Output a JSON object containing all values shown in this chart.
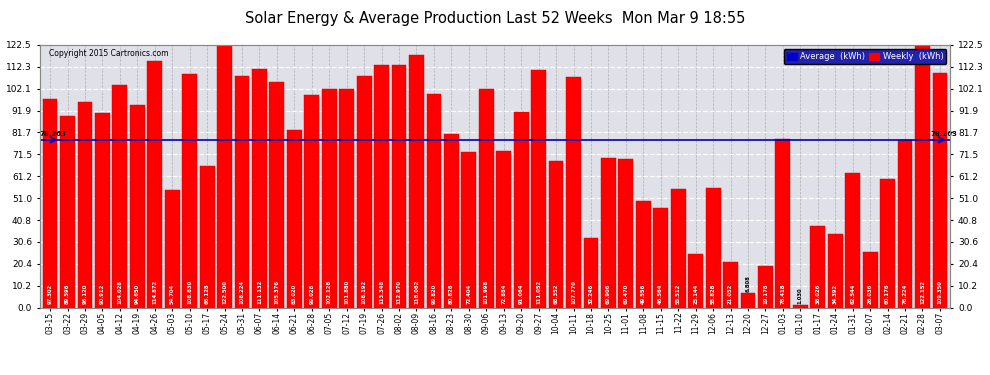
{
  "title": "Solar Energy & Average Production Last 52 Weeks  Mon Mar 9 18:55",
  "copyright": "Copyright 2015 Cartronics.com",
  "average_line": 78.263,
  "bar_color": "#ff0000",
  "average_line_color": "#0000bb",
  "background_color": "#ffffff",
  "plot_bg_color": "#e0e0e8",
  "ylim": [
    0,
    122.5
  ],
  "yticks": [
    0.0,
    10.2,
    20.4,
    30.6,
    40.8,
    51.0,
    61.2,
    71.5,
    81.7,
    91.9,
    102.1,
    112.3,
    122.5
  ],
  "legend_avg_color": "#0000cc",
  "legend_weekly_color": "#ff0000",
  "categories": [
    "03-15",
    "03-22",
    "03-29",
    "04-05",
    "04-12",
    "04-19",
    "04-26",
    "05-03",
    "05-10",
    "05-17",
    "05-24",
    "05-31",
    "06-07",
    "06-14",
    "06-21",
    "06-28",
    "07-05",
    "07-12",
    "07-19",
    "07-26",
    "08-02",
    "08-09",
    "08-16",
    "08-23",
    "08-30",
    "09-06",
    "09-13",
    "09-20",
    "09-27",
    "10-04",
    "10-11",
    "10-18",
    "10-25",
    "11-01",
    "11-08",
    "11-15",
    "11-22",
    "11-29",
    "12-06",
    "12-13",
    "12-20",
    "12-27",
    "01-03",
    "01-10",
    "01-17",
    "01-24",
    "01-31",
    "02-07",
    "02-14",
    "02-21",
    "02-28",
    "03-07"
  ],
  "values": [
    97.302,
    89.596,
    96.12,
    90.912,
    104.028,
    94.65,
    114.872,
    54.704,
    108.83,
    66.128,
    122.5,
    108.224,
    111.132,
    105.376,
    83.02,
    99.028,
    102.128,
    101.88,
    108.192,
    113.348,
    112.97,
    118.062,
    99.82,
    80.826,
    72.404,
    101.998,
    72.884,
    91.064,
    111.052,
    68.352,
    107.77,
    32.246,
    69.906,
    69.47,
    49.556,
    46.564,
    55.512,
    25.144,
    55.828,
    21.052,
    6.808,
    19.178,
    78.418,
    1.03,
    38.026,
    34.392,
    62.544,
    26.036,
    60.176,
    78.224,
    122.152,
    109.35
  ]
}
